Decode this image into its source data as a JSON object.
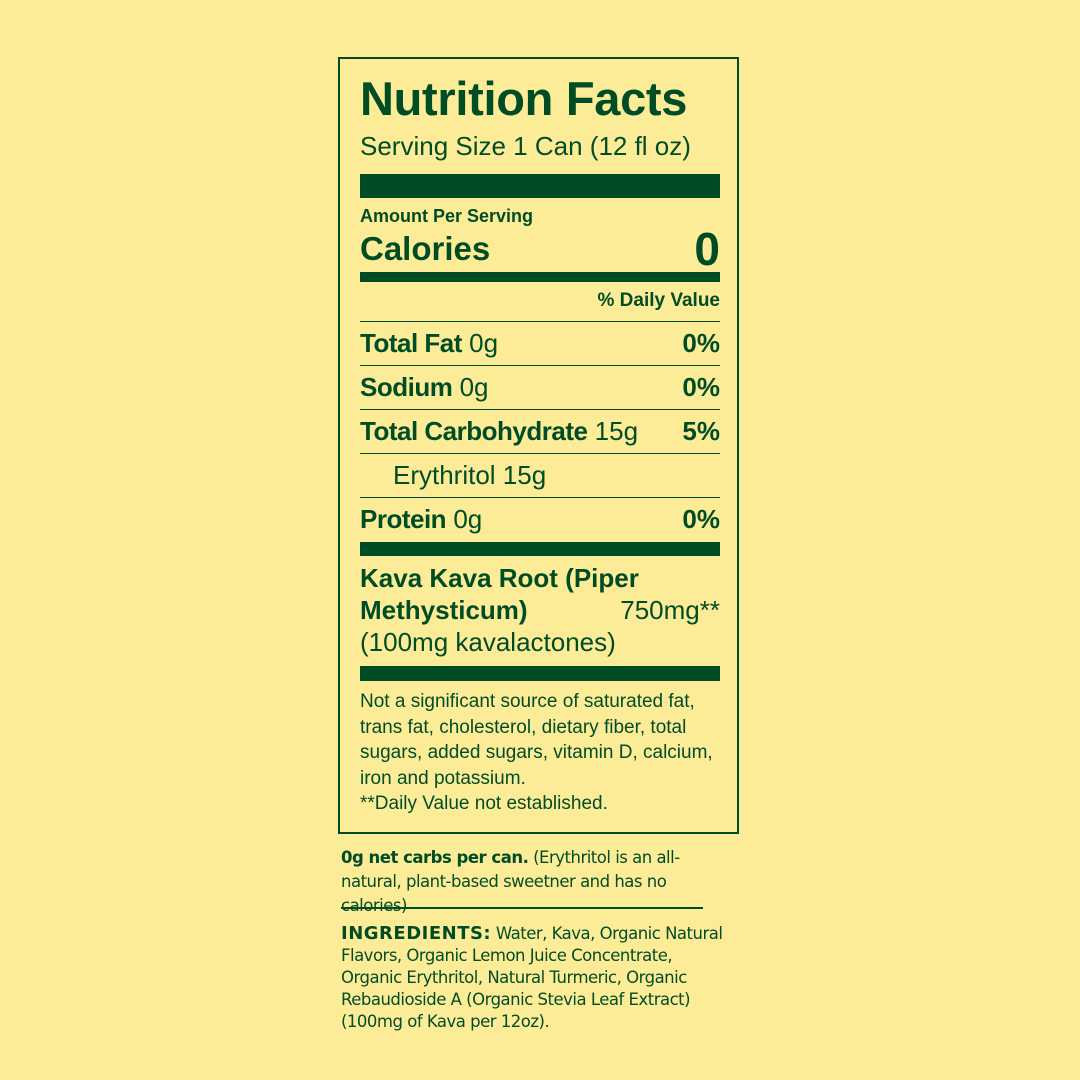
{
  "label": {
    "title": "Nutrition Facts",
    "serving_size": "Serving Size 1 Can (12 fl oz)",
    "amount_per_serving": "Amount Per Serving",
    "calories_label": "Calories",
    "calories_value": "0",
    "daily_value_header": "% Daily Value",
    "rows": [
      {
        "name": "Total Fat",
        "amount": "0g",
        "dv": "0%"
      },
      {
        "name": "Sodium",
        "amount": "0g",
        "dv": "0%"
      },
      {
        "name": "Total Carbohydrate",
        "amount": "15g",
        "dv": "5%"
      },
      {
        "name": "",
        "amount": "Erythritol 15g",
        "dv": ""
      },
      {
        "name": "Protein",
        "amount": "0g",
        "dv": "0%"
      }
    ],
    "kava": {
      "line1": "Kava Kava Root (Piper",
      "line2": "Methysticum)",
      "amount": "750mg**",
      "line3": "(100mg kavalactones)"
    },
    "footnote": "Not a significant source of saturated fat, trans fat, cholesterol, dietary fiber, total sugars, added sugars, vitamin D, calcium, iron and potassium.",
    "footnote2": "**Daily Value not established."
  },
  "net_carbs": {
    "bold": "0g net carbs per can.",
    "text": " (Erythritol is an all-natural, plant-based sweetner and has no calories)"
  },
  "ingredients": {
    "label": "INGREDIENTS:",
    "text": " Water, Kava, Organic Natural Flavors, Organic Lemon Juice Concentrate, Organic Erythritol, Natural Turmeric, Organic Rebaudioside A (Organic Stevia Leaf Extract) (100mg of Kava per 12oz)."
  },
  "colors": {
    "background": "#fcec98",
    "ink": "#004d25"
  }
}
